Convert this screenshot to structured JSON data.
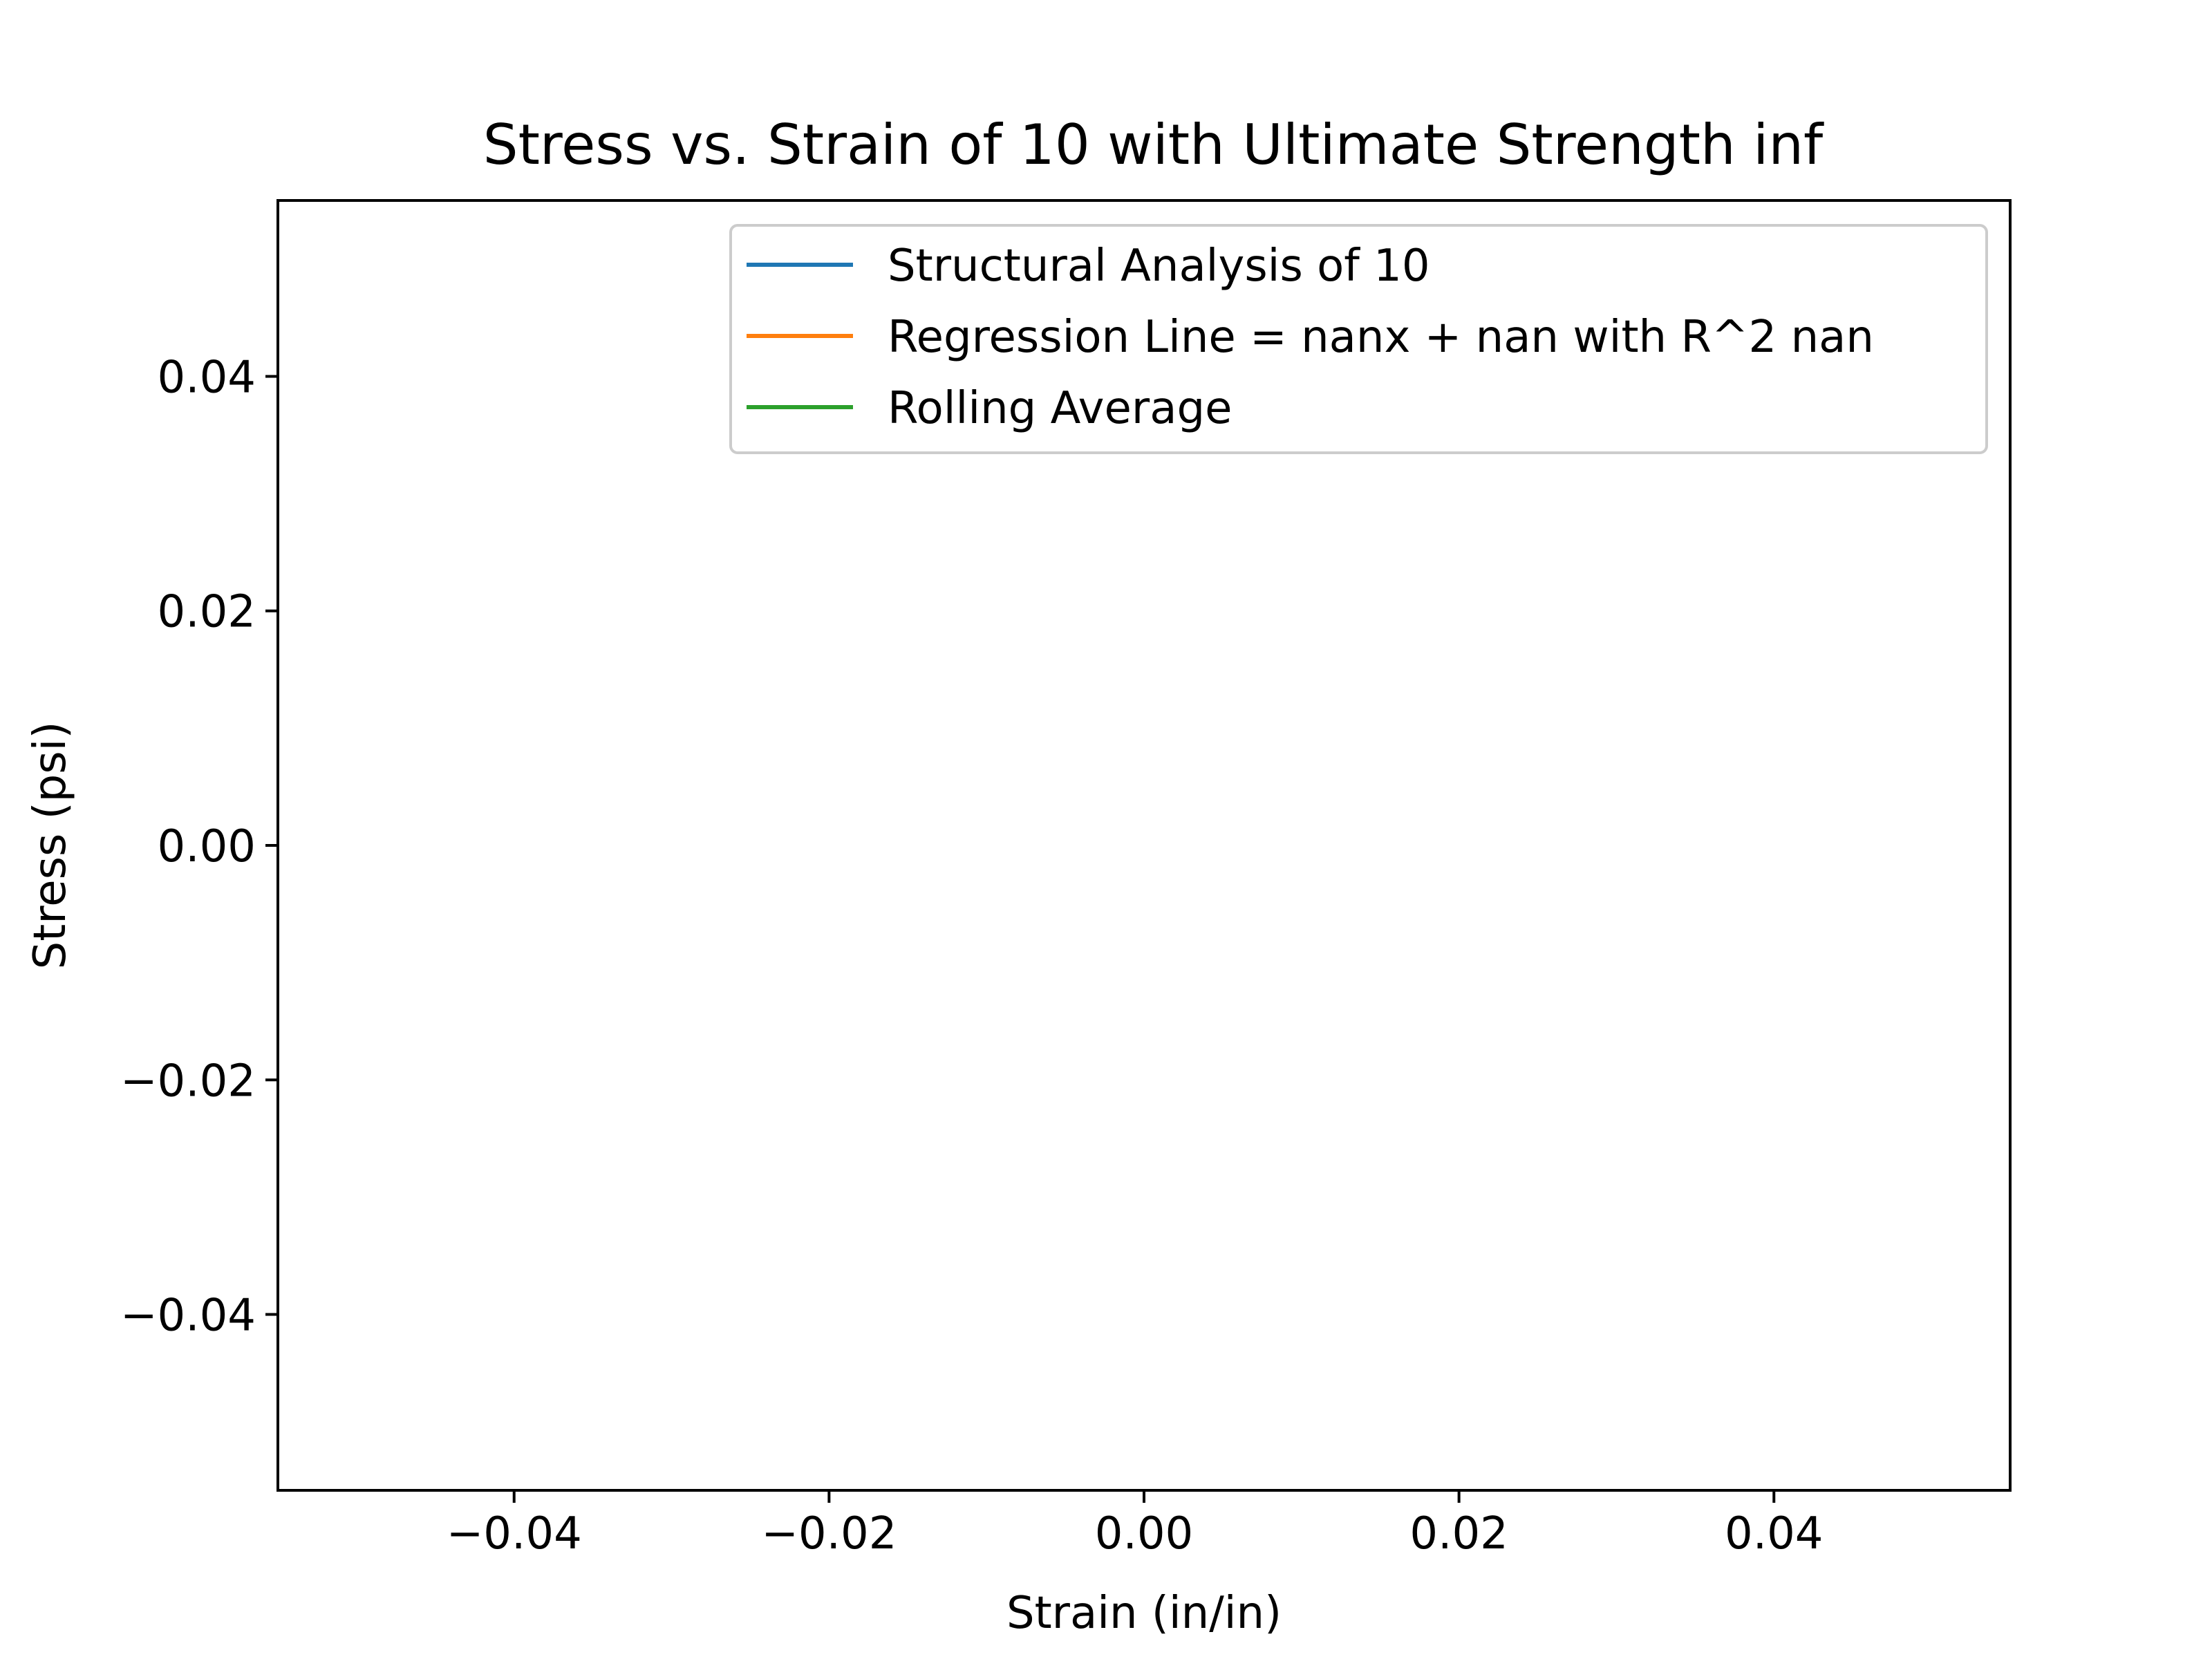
{
  "chart_data": {
    "type": "line",
    "title": "Stress vs. Strain of 10 with Ultimate Strength inf",
    "xlabel": "Strain (in/in)",
    "ylabel": "Stress (psi)",
    "xlim": [
      -0.055,
      0.055
    ],
    "ylim": [
      -0.055,
      0.055
    ],
    "xticks": [
      -0.04,
      -0.02,
      0.0,
      0.02,
      0.04
    ],
    "xtick_labels": [
      "−0.04",
      "−0.02",
      "0.00",
      "0.02",
      "0.04"
    ],
    "yticks": [
      -0.04,
      -0.02,
      0.0,
      0.02,
      0.04
    ],
    "ytick_labels": [
      "−0.04",
      "−0.02",
      "0.00",
      "0.02",
      "0.04"
    ],
    "grid": false,
    "legend_position": "upper right",
    "series": [
      {
        "name": "Structural Analysis of 10",
        "color": "#1f77b4",
        "x": [],
        "y": []
      },
      {
        "name": "Regression Line = nanx + nan with R^2 nan",
        "color": "#ff7f0e",
        "x": [],
        "y": []
      },
      {
        "name": "Rolling Average",
        "color": "#2ca02c",
        "x": [],
        "y": []
      }
    ]
  }
}
